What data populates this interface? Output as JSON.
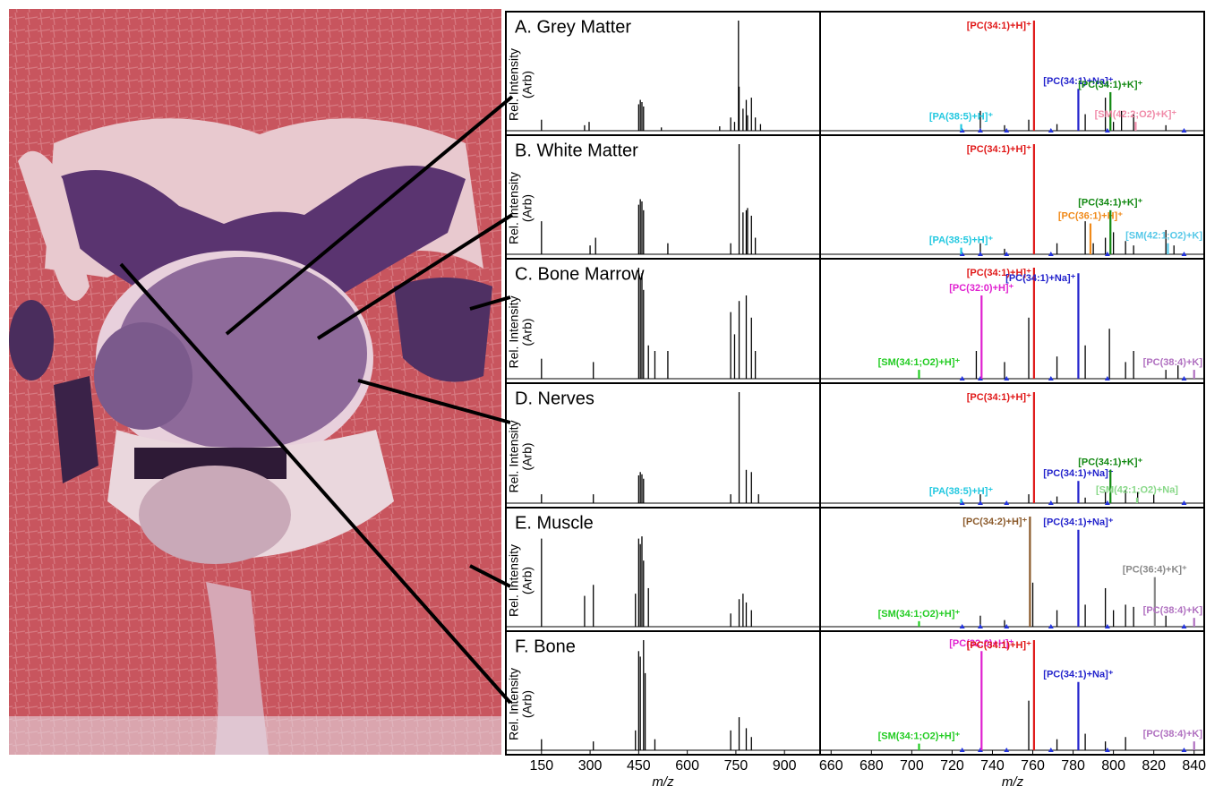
{
  "chart_data": [
    {
      "type": "spectrum",
      "title": "A. Grey Matter",
      "ylabel": [
        "Rel. Intensity",
        "(Arb)"
      ],
      "xlim": [
        40,
        1010
      ],
      "ylim": [
        0,
        100
      ],
      "color": "#000000",
      "x": [
        150,
        283,
        297,
        450,
        455,
        460,
        465,
        520,
        700,
        734,
        746,
        758,
        760,
        772,
        782,
        786,
        798,
        810,
        826
      ],
      "values": [
        10,
        5,
        8,
        24,
        28,
        26,
        22,
        3,
        4,
        12,
        8,
        100,
        40,
        20,
        28,
        14,
        30,
        12,
        6
      ]
    },
    {
      "type": "spectrum",
      "xlim": [
        655,
        845
      ],
      "ylim": [
        0,
        100
      ],
      "color": "#000000",
      "markers": [
        725,
        734,
        747,
        769,
        797,
        835
      ],
      "marker_color": "#2233dd",
      "x": [
        734,
        746,
        758,
        772,
        786,
        796,
        800,
        804,
        810,
        826
      ],
      "values": [
        18,
        5,
        10,
        6,
        15,
        30,
        8,
        18,
        15,
        5
      ],
      "annotations": [
        {
          "label": "[PA(38:5)+H]⁺",
          "x": 724.5,
          "value": 6,
          "color": "#22c8e0"
        },
        {
          "label": "[PC(34:1)+H]⁺",
          "x": 760.6,
          "value": 100,
          "color": "#e01818"
        },
        {
          "label": "[PC(34:1)+Na]⁺",
          "x": 782.6,
          "value": 38,
          "color": "#2222cc"
        },
        {
          "label": "[PC(34:1)+K]⁺",
          "x": 798.5,
          "value": 35,
          "color": "#118811"
        },
        {
          "label": "[SM(42:2;O2)+K]⁺",
          "x": 811,
          "value": 8,
          "color": "#f08aa8"
        }
      ]
    },
    {
      "type": "spectrum",
      "title": "B. White Matter",
      "ylabel": [
        "Rel. Intensity",
        "(Arb)"
      ],
      "xlim": [
        40,
        1010
      ],
      "ylim": [
        0,
        100
      ],
      "color": "#000000",
      "x": [
        150,
        300,
        317,
        450,
        455,
        460,
        465,
        540,
        734,
        760,
        772,
        782,
        786,
        798,
        810
      ],
      "values": [
        30,
        8,
        15,
        45,
        50,
        48,
        40,
        10,
        10,
        100,
        38,
        40,
        42,
        35,
        15
      ]
    },
    {
      "type": "spectrum",
      "xlim": [
        655,
        845
      ],
      "ylim": [
        0,
        100
      ],
      "color": "#000000",
      "markers": [
        725,
        734,
        747,
        769,
        797,
        835
      ],
      "marker_color": "#2233dd",
      "x": [
        734,
        746,
        772,
        786,
        790,
        796,
        800,
        806,
        810,
        826,
        830
      ],
      "values": [
        10,
        5,
        10,
        30,
        10,
        15,
        20,
        12,
        8,
        22,
        8
      ],
      "annotations": [
        {
          "label": "[PA(38:5)+H]⁺",
          "x": 724.5,
          "value": 6,
          "color": "#22c8e0"
        },
        {
          "label": "[PC(34:1)+H]⁺",
          "x": 760.6,
          "value": 100,
          "color": "#e01818"
        },
        {
          "label": "[PC(36:1)+H]⁺",
          "x": 788.6,
          "value": 28,
          "color": "#f08a1a"
        },
        {
          "label": "[PC(34:1)+K]⁺",
          "x": 798.5,
          "value": 40,
          "color": "#118811"
        },
        {
          "label": "[SM(42:1;O2)+K]",
          "x": 827,
          "value": 10,
          "color": "#55c8e8"
        }
      ]
    },
    {
      "type": "spectrum",
      "title": "C. Bone Marrow",
      "ylabel": [
        "Rel. Intensity",
        "(Arb)"
      ],
      "xlim": [
        40,
        1010
      ],
      "ylim": [
        0,
        100
      ],
      "color": "#000000",
      "x": [
        150,
        310,
        450,
        455,
        460,
        465,
        480,
        500,
        540,
        734,
        746,
        760,
        782,
        798,
        810
      ],
      "values": [
        18,
        15,
        100,
        90,
        95,
        80,
        30,
        25,
        25,
        60,
        40,
        70,
        75,
        55,
        25
      ]
    },
    {
      "type": "spectrum",
      "xlim": [
        655,
        845
      ],
      "ylim": [
        0,
        100
      ],
      "color": "#000000",
      "markers": [
        725,
        734,
        747,
        769,
        797,
        835
      ],
      "marker_color": "#2233dd",
      "x": [
        732,
        746,
        758,
        772,
        786,
        798,
        806,
        810,
        826,
        832
      ],
      "values": [
        25,
        15,
        55,
        20,
        30,
        45,
        15,
        25,
        8,
        12
      ],
      "annotations": [
        {
          "label": "[SM(34:1;O2)+H]⁺",
          "x": 703.6,
          "value": 8,
          "color": "#22cc22"
        },
        {
          "label": "[PC(32:0)+H]⁺",
          "x": 734.6,
          "value": 75,
          "color": "#e020d0"
        },
        {
          "label": "[PC(34:1)+H]⁺",
          "x": 760.6,
          "value": 100,
          "color": "#e01818"
        },
        {
          "label": "[PC(34:1)+Na]⁺",
          "x": 782.6,
          "value": 95,
          "color": "#2222cc"
        },
        {
          "label": "[PC(38:4)+K]",
          "x": 840,
          "value": 8,
          "color": "#b070c0"
        }
      ]
    },
    {
      "type": "spectrum",
      "title": "D. Nerves",
      "ylabel": [
        "Rel. Intensity",
        "(Arb)"
      ],
      "xlim": [
        40,
        1010
      ],
      "ylim": [
        0,
        100
      ],
      "color": "#000000",
      "x": [
        150,
        310,
        450,
        455,
        460,
        465,
        734,
        760,
        782,
        798,
        820
      ],
      "values": [
        8,
        8,
        25,
        28,
        26,
        22,
        8,
        100,
        30,
        28,
        8
      ]
    },
    {
      "type": "spectrum",
      "xlim": [
        655,
        845
      ],
      "ylim": [
        0,
        100
      ],
      "color": "#000000",
      "markers": [
        725,
        734,
        747,
        769,
        797,
        835
      ],
      "marker_color": "#2233dd",
      "x": [
        734,
        758,
        772,
        786,
        796,
        806,
        812,
        820
      ],
      "values": [
        8,
        8,
        6,
        5,
        10,
        12,
        10,
        8
      ],
      "annotations": [
        {
          "label": "[PA(38:5)+H]⁺",
          "x": 724.5,
          "value": 4,
          "color": "#22c8e0"
        },
        {
          "label": "[PC(34:1)+H]⁺",
          "x": 760.6,
          "value": 100,
          "color": "#e01818"
        },
        {
          "label": "[PC(34:1)+Na]⁺",
          "x": 782.6,
          "value": 20,
          "color": "#2222cc"
        },
        {
          "label": "[PC(34:1)+K]⁺",
          "x": 798.5,
          "value": 30,
          "color": "#118811"
        },
        {
          "label": "[SM(42:1;O2)+Na]",
          "x": 811.7,
          "value": 5,
          "color": "#88d888"
        }
      ]
    },
    {
      "type": "spectrum",
      "title": "E. Muscle",
      "ylabel": [
        "Rel. Intensity",
        "(Arb)"
      ],
      "xlim": [
        40,
        1010
      ],
      "ylim": [
        0,
        100
      ],
      "color": "#000000",
      "x": [
        150,
        283,
        310,
        440,
        450,
        455,
        460,
        465,
        480,
        734,
        760,
        772,
        782,
        798
      ],
      "values": [
        80,
        28,
        38,
        30,
        80,
        75,
        82,
        60,
        35,
        12,
        25,
        30,
        22,
        15
      ]
    },
    {
      "type": "spectrum",
      "xlim": [
        655,
        845
      ],
      "ylim": [
        0,
        100
      ],
      "color": "#000000",
      "markers": [
        725,
        734,
        747,
        769,
        797,
        835
      ],
      "marker_color": "#2233dd",
      "x": [
        734,
        746,
        760,
        772,
        786,
        796,
        800,
        806,
        810,
        826
      ],
      "values": [
        10,
        6,
        40,
        15,
        20,
        35,
        15,
        20,
        18,
        10
      ],
      "annotations": [
        {
          "label": "[SM(34:1;O2)+H]⁺",
          "x": 703.6,
          "value": 5,
          "color": "#22cc22"
        },
        {
          "label": "[PC(34:2)+H]⁺",
          "x": 758.6,
          "value": 100,
          "color": "#8b5a2b"
        },
        {
          "label": "[PC(34:1)+Na]⁺",
          "x": 782.6,
          "value": 88,
          "color": "#2222cc"
        },
        {
          "label": "[PC(36:4)+K]⁺",
          "x": 820.5,
          "value": 45,
          "color": "#888888"
        },
        {
          "label": "[PC(38:4)+K]",
          "x": 840,
          "value": 8,
          "color": "#b070c0"
        }
      ]
    },
    {
      "type": "spectrum",
      "title": "F. Bone",
      "ylabel": [
        "Rel. Intensity",
        "(Arb)"
      ],
      "xlim": [
        40,
        1010
      ],
      "ylim": [
        0,
        100
      ],
      "color": "#000000",
      "xticks": [
        150,
        300,
        450,
        600,
        750,
        900
      ],
      "xlabel": "m/z",
      "x": [
        150,
        310,
        440,
        450,
        455,
        465,
        470,
        500,
        734,
        760,
        782,
        798
      ],
      "values": [
        10,
        8,
        18,
        90,
        85,
        100,
        70,
        10,
        18,
        30,
        20,
        12
      ]
    },
    {
      "type": "spectrum",
      "xlim": [
        655,
        845
      ],
      "ylim": [
        0,
        100
      ],
      "color": "#000000",
      "markers": [
        725,
        734,
        747,
        769,
        797,
        835
      ],
      "marker_color": "#2233dd",
      "xticks": [
        660,
        680,
        700,
        720,
        740,
        760,
        780,
        800,
        820,
        840
      ],
      "xlabel": "m/z",
      "x": [
        758,
        772,
        786,
        796,
        806
      ],
      "values": [
        45,
        10,
        15,
        8,
        12
      ],
      "annotations": [
        {
          "label": "[SM(34:1;O2)+H]⁺",
          "x": 703.6,
          "value": 6,
          "color": "#22cc22"
        },
        {
          "label": "[PC(32:0)+H]⁺",
          "x": 734.6,
          "value": 90,
          "color": "#e020d0"
        },
        {
          "label": "[PC(34:1)+H]⁺",
          "x": 760.6,
          "value": 100,
          "color": "#e01818"
        },
        {
          "label": "[PC(34:1)+Na]⁺",
          "x": 782.6,
          "value": 62,
          "color": "#2222cc"
        },
        {
          "label": "[PC(38:4)+K]",
          "x": 840,
          "value": 8,
          "color": "#b070c0"
        }
      ]
    }
  ]
}
